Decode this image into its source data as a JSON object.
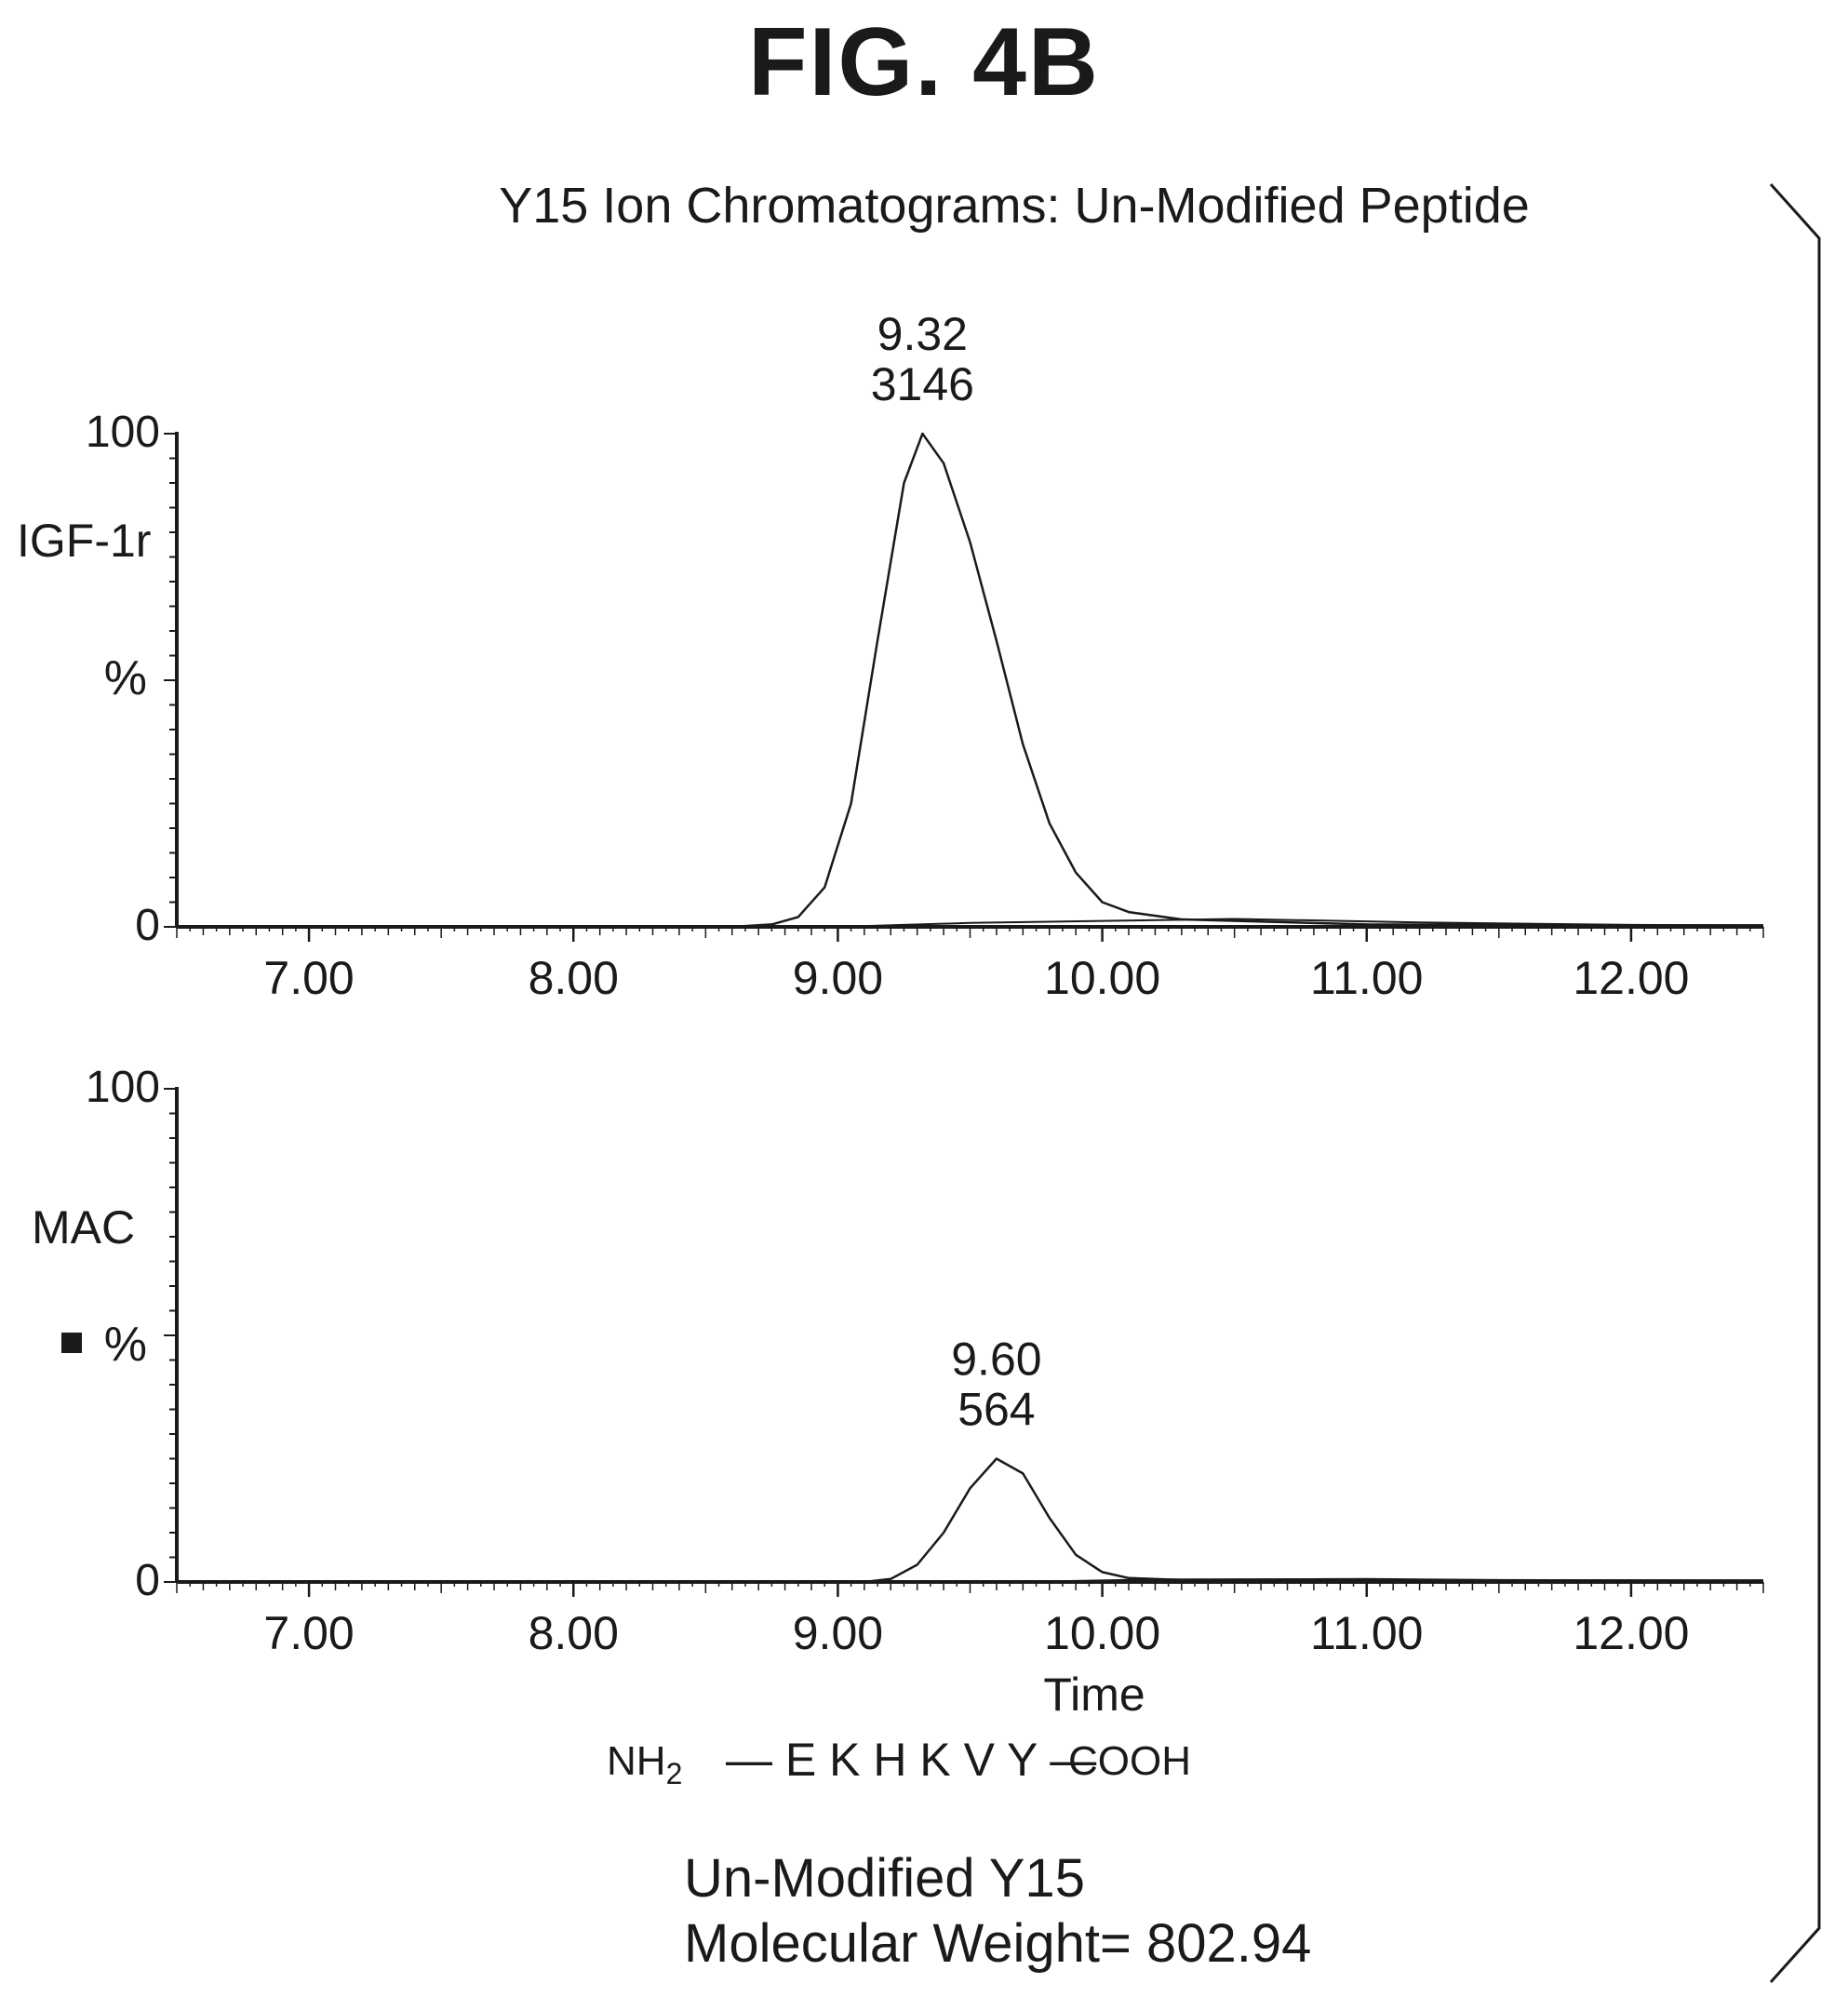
{
  "figure": {
    "label": "FIG. 4B",
    "title": "Y15 Ion Chromatograms: Un-Modified Peptide"
  },
  "sequence": {
    "n_term": "NH",
    "n_term_sub": "2",
    "residues": "— E K H K V Y —",
    "c_term": "COOH"
  },
  "caption": {
    "line1": "Un-Modified Y15",
    "line2": "Molecular Weight= 802.94"
  },
  "colors": {
    "ink": "#1a1a1a",
    "background": "#ffffff"
  },
  "chart_data": [
    {
      "type": "line",
      "panel": "top",
      "ylabel_top": "IGF-1r",
      "ylabel_unit": "%",
      "xlabel": "",
      "xlim": [
        6.5,
        12.5
      ],
      "ylim": [
        0,
        100
      ],
      "yticks": [
        "100",
        "0"
      ],
      "xticks": [
        "7.00",
        "8.00",
        "9.00",
        "10.00",
        "11.00",
        "12.00"
      ],
      "peak": {
        "time_label": "9.32",
        "area_label": "3146",
        "x": 9.32,
        "y": 100
      },
      "series": [
        {
          "x": [
            6.5,
            8.6,
            8.75,
            8.85,
            8.95,
            9.05,
            9.15,
            9.25,
            9.32,
            9.4,
            9.5,
            9.6,
            9.7,
            9.8,
            9.9,
            10.0,
            10.1,
            10.3,
            11.0,
            12.0,
            12.5
          ],
          "y": [
            0,
            0,
            0.5,
            2,
            8,
            25,
            58,
            90,
            100,
            94,
            78,
            58,
            37,
            21,
            11,
            5,
            3,
            1.5,
            0.5,
            0.3,
            0.3
          ]
        },
        {
          "x": [
            6.5,
            9.0,
            9.5,
            10.0,
            10.5,
            11.2,
            12.0,
            12.5
          ],
          "y": [
            0,
            0,
            0.8,
            1.2,
            1.6,
            0.9,
            0.4,
            0.3
          ]
        }
      ]
    },
    {
      "type": "line",
      "panel": "bottom",
      "ylabel_top": "MAC",
      "ylabel_unit": "%",
      "xlabel": "Time",
      "xlim": [
        6.5,
        12.5
      ],
      "ylim": [
        0,
        100
      ],
      "yticks": [
        "100",
        "0"
      ],
      "xticks": [
        "7.00",
        "8.00",
        "9.00",
        "10.00",
        "11.00",
        "12.00"
      ],
      "peak": {
        "time_label": "9.60",
        "area_label": "564",
        "x": 9.6,
        "y": 25
      },
      "series": [
        {
          "x": [
            6.5,
            9.1,
            9.2,
            9.3,
            9.4,
            9.5,
            9.6,
            9.7,
            9.8,
            9.9,
            10.0,
            10.1,
            10.3,
            11.5,
            12.5
          ],
          "y": [
            0,
            0,
            0.6,
            3.5,
            10,
            19,
            25,
            22,
            13,
            5.5,
            2,
            0.8,
            0.4,
            0.3,
            0.3
          ]
        },
        {
          "x": [
            6.5,
            9.7,
            10.2,
            11.0,
            11.5,
            12.5
          ],
          "y": [
            0,
            0,
            0.5,
            0.6,
            0.4,
            0.3
          ]
        }
      ]
    }
  ]
}
